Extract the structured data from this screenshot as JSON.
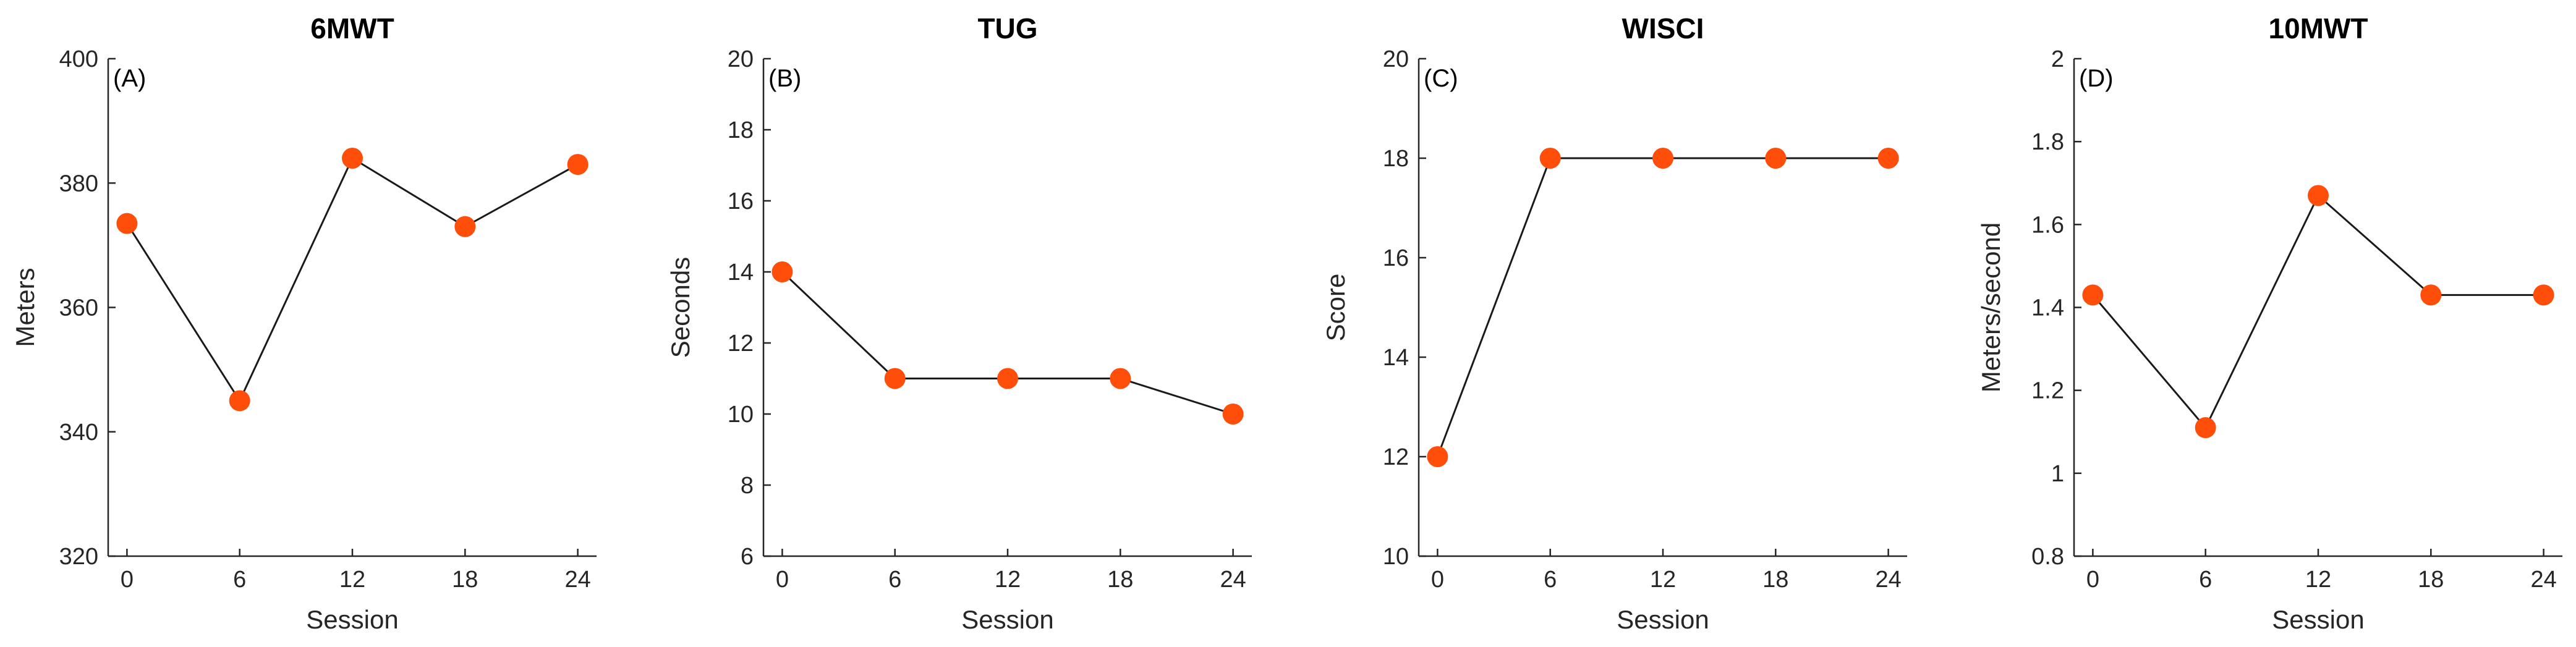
{
  "chart_data": [
    {
      "type": "line",
      "title": "6MWT",
      "panel_label": "(A)",
      "xlabel": "Session",
      "ylabel": "Meters",
      "x": [
        0,
        6,
        12,
        18,
        24
      ],
      "xticks": [
        "0",
        "6",
        "12",
        "18",
        "24"
      ],
      "xlim": [
        -1,
        25
      ],
      "ylim": [
        320,
        400
      ],
      "yticks": [
        "320",
        "340",
        "360",
        "380",
        "400"
      ],
      "values": [
        373.5,
        345,
        384,
        373,
        383
      ],
      "marker_color": "#ff4d0a",
      "line_color": "#1a1a1a",
      "grid": false
    },
    {
      "type": "line",
      "title": "TUG",
      "panel_label": "(B)",
      "xlabel": "Session",
      "ylabel": "Seconds",
      "x": [
        0,
        6,
        12,
        18,
        24
      ],
      "xticks": [
        "0",
        "6",
        "12",
        "18",
        "24"
      ],
      "xlim": [
        -1,
        25
      ],
      "ylim": [
        6,
        20
      ],
      "yticks": [
        "6",
        "8",
        "10",
        "12",
        "14",
        "16",
        "18",
        "20"
      ],
      "values": [
        14,
        11,
        11,
        11,
        10
      ],
      "marker_color": "#ff4d0a",
      "line_color": "#1a1a1a",
      "grid": false
    },
    {
      "type": "line",
      "title": "WISCI",
      "panel_label": "(C)",
      "xlabel": "Session",
      "ylabel": "Score",
      "x": [
        0,
        6,
        12,
        18,
        24
      ],
      "xticks": [
        "0",
        "6",
        "12",
        "18",
        "24"
      ],
      "xlim": [
        -1,
        25
      ],
      "ylim": [
        10,
        20
      ],
      "yticks": [
        "10",
        "12",
        "14",
        "16",
        "18",
        "20"
      ],
      "values": [
        12,
        18,
        18,
        18,
        18
      ],
      "marker_color": "#ff4d0a",
      "line_color": "#1a1a1a",
      "grid": false
    },
    {
      "type": "line",
      "title": "10MWT",
      "panel_label": "(D)",
      "xlabel": "Session",
      "ylabel": "Meters/second",
      "x": [
        0,
        6,
        12,
        18,
        24
      ],
      "xticks": [
        "0",
        "6",
        "12",
        "18",
        "24"
      ],
      "xlim": [
        -1,
        25
      ],
      "ylim": [
        0.8,
        2
      ],
      "yticks": [
        "0.8",
        "1",
        "1.2",
        "1.4",
        "1.6",
        "1.8",
        "2"
      ],
      "values": [
        1.43,
        1.11,
        1.67,
        1.43,
        1.43
      ],
      "marker_color": "#ff4d0a",
      "line_color": "#1a1a1a",
      "grid": false
    }
  ]
}
